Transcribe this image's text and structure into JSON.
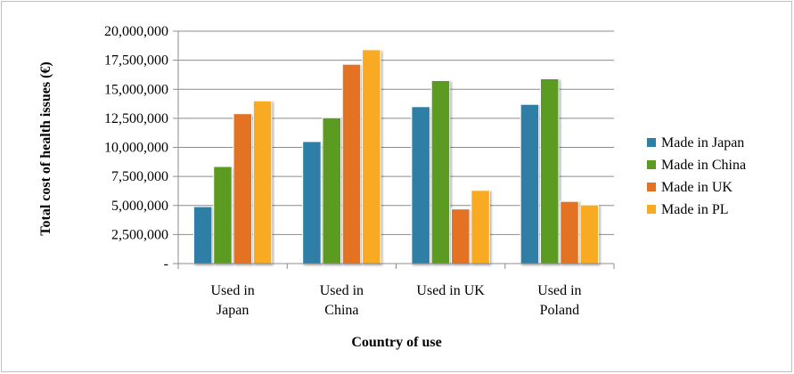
{
  "chart_data": {
    "type": "bar",
    "title": "",
    "xlabel": "Country of use",
    "ylabel": "Total cost of health issues (€)",
    "categories": [
      [
        "Used in",
        "Japan"
      ],
      [
        "Used in",
        "China"
      ],
      [
        "Used in UK"
      ],
      [
        "Used in",
        "Poland"
      ]
    ],
    "series": [
      {
        "name": "Made in Japan",
        "color": "#2e7ea6",
        "values": [
          4900000,
          10500000,
          13500000,
          13700000
        ]
      },
      {
        "name": "Made in China",
        "color": "#5b9b21",
        "values": [
          8350000,
          12550000,
          15750000,
          15900000
        ]
      },
      {
        "name": "Made in UK",
        "color": "#e37224",
        "values": [
          12900000,
          17150000,
          4700000,
          5350000
        ]
      },
      {
        "name": "Made in PL",
        "color": "#f7aa22",
        "values": [
          14000000,
          18400000,
          6300000,
          5050000
        ]
      }
    ],
    "ylim": [
      0,
      20000000
    ],
    "yticks": [
      0,
      2500000,
      5000000,
      7500000,
      10000000,
      12500000,
      15000000,
      17500000,
      20000000
    ],
    "ytick_labels": [
      "-",
      "2,500,000",
      "5,000,000",
      "7,500,000",
      "10,000,000",
      "12,500,000",
      "15,000,000",
      "17,500,000",
      "20,000,000"
    ],
    "grid": true,
    "legend_position": "right"
  }
}
